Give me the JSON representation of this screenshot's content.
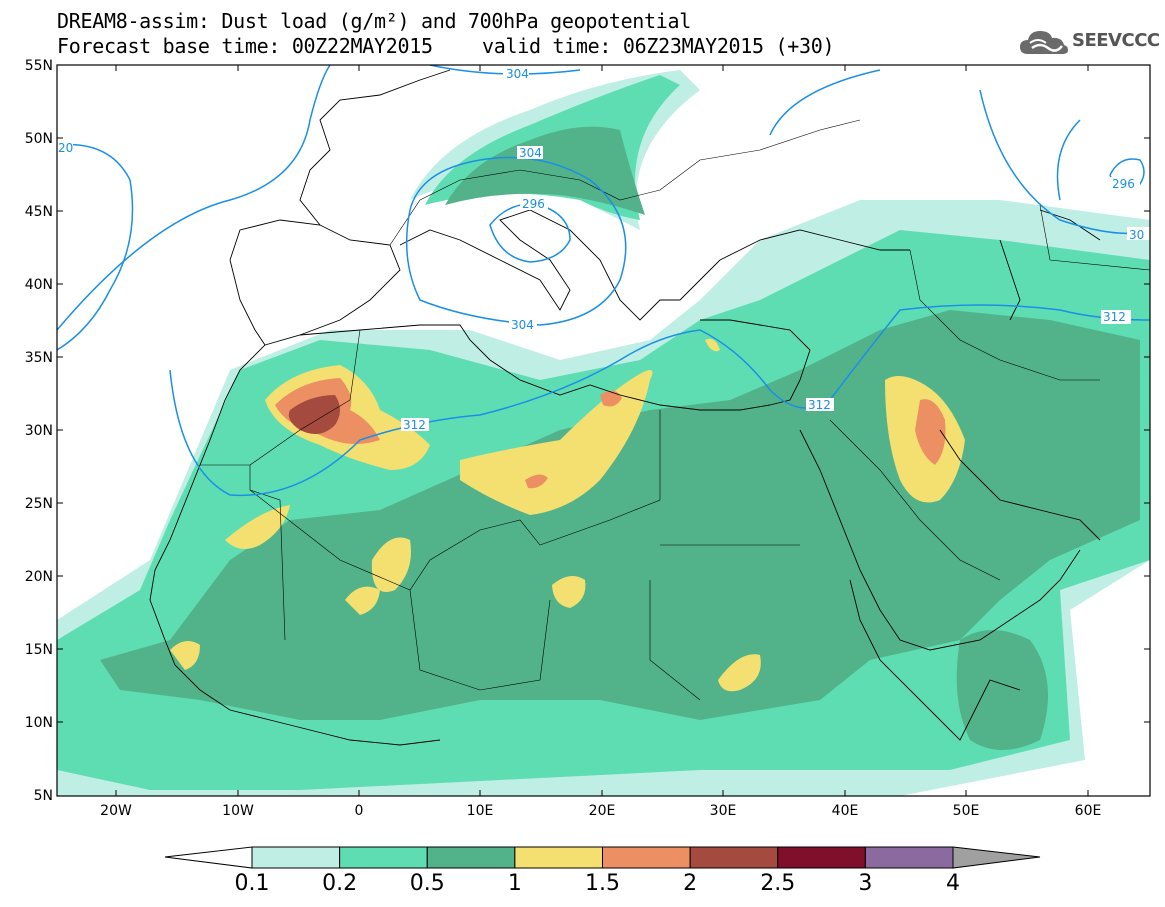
{
  "title_line1": "DREAM8-assim: Dust load (g/m²) and 700hPa geopotential",
  "title_line2": "Forecast base time: 00Z22MAY2015",
  "valid_time": "valid time: 06Z23MAY2015 (+30)",
  "logo_text": "SEEVCCC",
  "logo_icon": "cloud-icon",
  "lat_labels": [
    "55N",
    "50N",
    "45N",
    "40N",
    "35N",
    "30N",
    "25N",
    "20N",
    "15N",
    "10N",
    "5N"
  ],
  "lon_labels": [
    "20W",
    "10W",
    "0",
    "10E",
    "20E",
    "30E",
    "40E",
    "50E",
    "60E"
  ],
  "contour_labels": [
    "304",
    "304",
    "296",
    "304",
    "312",
    "312",
    "312",
    "296",
    "20",
    "30"
  ],
  "colorbar": {
    "labels": [
      "0.1",
      "0.2",
      "0.5",
      "1",
      "1.5",
      "2",
      "2.5",
      "3",
      "4"
    ],
    "colors": [
      "#bfeee5",
      "#5fddb2",
      "#52b38b",
      "#f3e071",
      "#ec9064",
      "#a44a3e",
      "#7f0f2a",
      "#8b6b9f",
      "#a0a0a0"
    ]
  }
}
